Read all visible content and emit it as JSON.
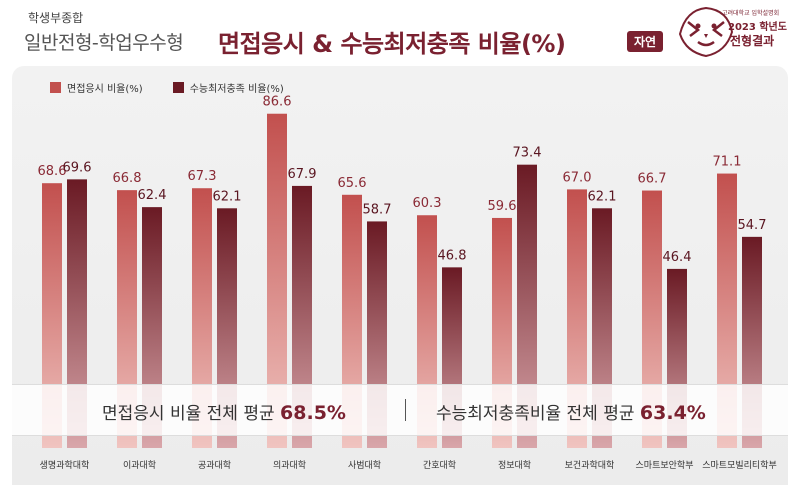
{
  "header": {
    "category": "학생부종합",
    "type": "일반전형-학업우수형",
    "title": "면접응시 & 수능최저충족 비율(%)",
    "badge": "자연",
    "logo_line1": "고려대학교 입학설명회",
    "logo_line2": "2023 학년도",
    "logo_line3": "전형결과"
  },
  "colors": {
    "accent": "#7a2130",
    "series1": "#c2504e",
    "series2": "#6a1a24"
  },
  "chart_data": {
    "type": "bar",
    "categories": [
      "생명과학대학",
      "이과대학",
      "공과대학",
      "의과대학",
      "사범대학",
      "간호대학",
      "정보대학",
      "보건과학대학",
      "스마트보안학부",
      "스마트모빌리티학부"
    ],
    "series": [
      {
        "name": "면접응시 비율(%)",
        "values": [
          68.6,
          66.8,
          67.3,
          86.6,
          65.6,
          60.3,
          59.6,
          67.0,
          66.7,
          71.1
        ]
      },
      {
        "name": "수능최저충족 비율(%)",
        "values": [
          69.6,
          62.4,
          62.1,
          67.9,
          58.7,
          46.8,
          73.4,
          62.1,
          46.4,
          54.7
        ]
      }
    ],
    "value_labels": [
      [
        "68.6",
        "66.8",
        "67.3",
        "86.6",
        "65.6",
        "60.3",
        "59.6",
        "67.0",
        "66.7",
        "71.1"
      ],
      [
        "69.6",
        "62.4",
        "62.1",
        "67.9",
        "58.7",
        "46.8",
        "73.4",
        "62.1",
        "46.4",
        "54.7"
      ]
    ],
    "ylim": [
      0,
      100
    ],
    "grid": false,
    "legend_position": "top-left"
  },
  "averages": {
    "interview_label": "면접응시 비율 전체 평균",
    "interview_value": "68.5%",
    "csat_label": "수능최저충족비율 전체 평균",
    "csat_value": "63.4%"
  }
}
